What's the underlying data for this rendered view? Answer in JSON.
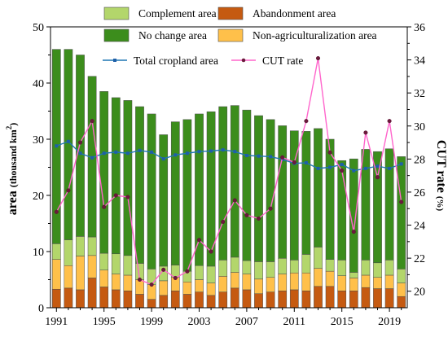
{
  "chart_data": {
    "type": "bar",
    "subtype": "stacked bar with dual-axis lines",
    "x": [
      1991,
      1992,
      1993,
      1994,
      1995,
      1996,
      1997,
      1998,
      1999,
      2000,
      2001,
      2002,
      2003,
      2004,
      2005,
      2006,
      2007,
      2008,
      2009,
      2010,
      2011,
      2012,
      2013,
      2014,
      2015,
      2016,
      2017,
      2018,
      2019,
      2020
    ],
    "x_ticks": [
      "1991",
      "1995",
      "1999",
      "2003",
      "2007",
      "2011",
      "2015",
      "2019"
    ],
    "left_axis": {
      "label": "area",
      "unit_label": "(thousand km",
      "unit_sup": "2",
      "unit_close": ")",
      "ylim": [
        0,
        50
      ],
      "ticks": [
        "0",
        "10",
        "20",
        "30",
        "40",
        "50"
      ]
    },
    "right_axis": {
      "label": "CUT rate",
      "unit_label": "(%)",
      "ylim": [
        19,
        36
      ],
      "ticks": [
        "20",
        "22",
        "24",
        "26",
        "28",
        "30",
        "32",
        "34",
        "36"
      ]
    },
    "stack_series": [
      {
        "name": "Abandonment area",
        "color": "#c55a11",
        "values": [
          3.3,
          3.5,
          3.2,
          5.3,
          3.7,
          3.2,
          3.0,
          2.4,
          1.5,
          2.2,
          3.0,
          2.4,
          2.8,
          2.2,
          2.8,
          3.5,
          3.2,
          2.5,
          2.8,
          3.0,
          3.2,
          3.0,
          3.8,
          3.8,
          3.0,
          3.0,
          3.6,
          3.4,
          3.4,
          2.0
        ]
      },
      {
        "name": "Non-agriculturalization area",
        "color": "#ffc04a",
        "values": [
          5.3,
          4.0,
          6.0,
          4.0,
          3.0,
          2.8,
          2.8,
          2.6,
          2.6,
          2.6,
          2.4,
          2.2,
          2.2,
          2.2,
          2.8,
          2.8,
          2.8,
          2.6,
          2.6,
          3.0,
          3.0,
          3.2,
          3.2,
          2.7,
          2.7,
          2.3,
          2.2,
          2.0,
          2.4,
          2.4
        ]
      },
      {
        "name": "Complement area",
        "color": "#b3d66b",
        "values": [
          2.8,
          4.6,
          3.5,
          3.3,
          3.0,
          3.6,
          3.5,
          2.9,
          2.8,
          2.6,
          2.2,
          1.9,
          2.5,
          3.0,
          2.9,
          2.7,
          2.4,
          3.1,
          2.8,
          2.8,
          2.3,
          3.3,
          3.8,
          2.1,
          2.8,
          1.0,
          2.7,
          2.6,
          2.7,
          2.5
        ]
      },
      {
        "name": "No change area",
        "color": "#3c8d1c",
        "values": [
          34.6,
          33.9,
          32.3,
          28.6,
          28.8,
          27.8,
          27.6,
          27.9,
          27.6,
          23.4,
          25.5,
          27.0,
          27.0,
          27.5,
          27.3,
          27.0,
          26.8,
          26.0,
          25.3,
          23.6,
          23.0,
          21.9,
          21.1,
          21.4,
          17.7,
          20.2,
          19.7,
          19.8,
          19.8,
          20.0
        ]
      }
    ],
    "line_series": [
      {
        "name": "Total cropland area",
        "axis": "left",
        "color": "#1f77b4",
        "marker": "square",
        "values": [
          28.8,
          29.6,
          27.5,
          26.7,
          27.5,
          27.7,
          27.5,
          28.0,
          27.7,
          26.5,
          27.2,
          27.5,
          27.8,
          27.9,
          28.1,
          27.8,
          27.1,
          27.0,
          26.9,
          26.4,
          25.7,
          25.8,
          24.8,
          25.0,
          25.5,
          24.4,
          24.8,
          25.2,
          24.8,
          25.6
        ]
      },
      {
        "name": "CUT rate",
        "axis": "right",
        "color": "#ff66cc",
        "marker": "circle",
        "values": [
          24.8,
          26.1,
          29.0,
          30.3,
          25.1,
          25.8,
          25.7,
          20.7,
          20.4,
          21.3,
          20.8,
          21.2,
          23.1,
          22.4,
          24.2,
          25.5,
          24.6,
          24.4,
          25.0,
          28.1,
          27.8,
          30.3,
          34.1,
          28.4,
          27.3,
          23.6,
          29.6,
          26.9,
          30.3,
          25.4
        ]
      }
    ],
    "legend": {
      "placement": "top-left",
      "items": [
        {
          "label": "Complement area",
          "kind": "patch",
          "color": "#b3d66b"
        },
        {
          "label": "Abandonment area",
          "kind": "patch",
          "color": "#c55a11"
        },
        {
          "label": "No change area",
          "kind": "patch",
          "color": "#3c8d1c"
        },
        {
          "label": "Non-agriculturalization area",
          "kind": "patch",
          "color": "#ffc04a"
        },
        {
          "label": "Total cropland area",
          "kind": "line-square",
          "color": "#1f77b4"
        },
        {
          "label": "CUT rate",
          "kind": "line-circle",
          "color": "#ff66cc"
        }
      ]
    },
    "grid": false
  }
}
